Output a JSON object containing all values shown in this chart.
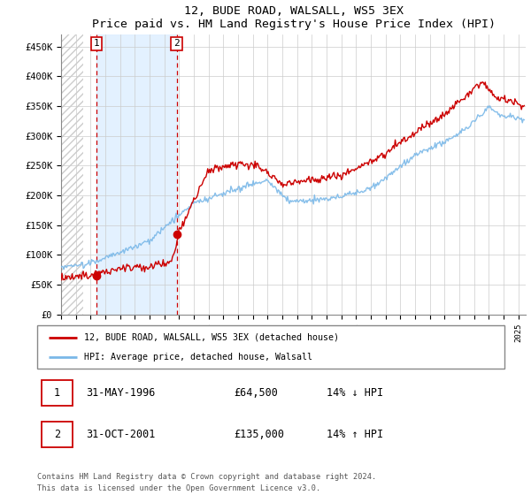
{
  "title": "12, BUDE ROAD, WALSALL, WS5 3EX",
  "subtitle": "Price paid vs. HM Land Registry's House Price Index (HPI)",
  "yticks": [
    0,
    50000,
    100000,
    150000,
    200000,
    250000,
    300000,
    350000,
    400000,
    450000
  ],
  "ytick_labels": [
    "£0",
    "£50K",
    "£100K",
    "£150K",
    "£200K",
    "£250K",
    "£300K",
    "£350K",
    "£400K",
    "£450K"
  ],
  "xlim_start": 1994.0,
  "xlim_end": 2025.5,
  "ylim": [
    0,
    470000
  ],
  "sale1_date": 1996.42,
  "sale1_price": 64500,
  "sale1_label": "1",
  "sale2_date": 2001.83,
  "sale2_price": 135000,
  "sale2_label": "2",
  "hpi_color": "#7ab8e8",
  "price_color": "#cc0000",
  "vline_color": "#cc0000",
  "shade_color": "#ddeeff",
  "legend_entries": [
    "12, BUDE ROAD, WALSALL, WS5 3EX (detached house)",
    "HPI: Average price, detached house, Walsall"
  ],
  "table_rows": [
    {
      "num": "1",
      "date": "31-MAY-1996",
      "price": "£64,500",
      "change": "14% ↓ HPI"
    },
    {
      "num": "2",
      "date": "31-OCT-2001",
      "price": "£135,000",
      "change": "14% ↑ HPI"
    }
  ],
  "footnote": "Contains HM Land Registry data © Crown copyright and database right 2024.\nThis data is licensed under the Open Government Licence v3.0.",
  "bg_hatch_end": 1995.5
}
